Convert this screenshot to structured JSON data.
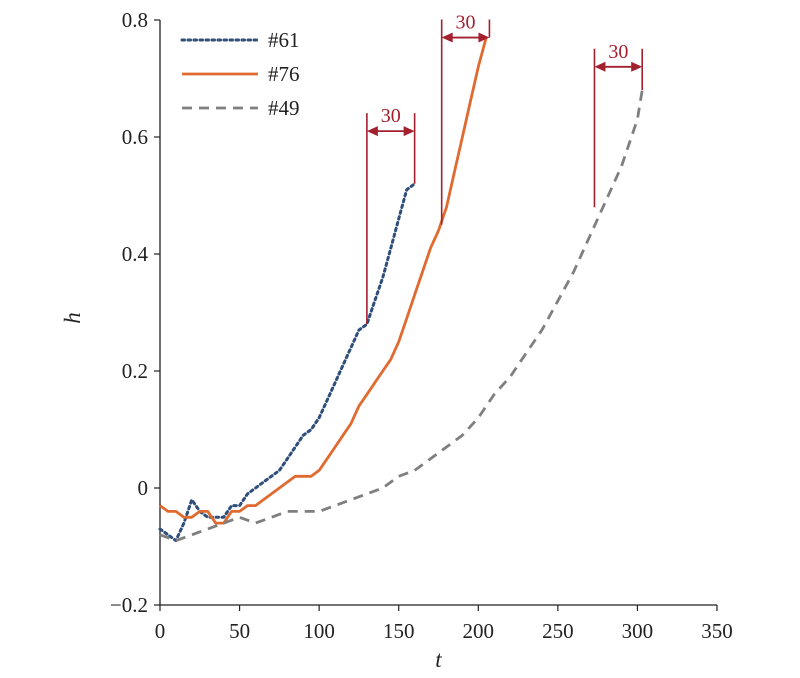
{
  "chart_data": {
    "type": "line",
    "xlabel": "t",
    "ylabel": "h",
    "xlim": [
      0,
      350
    ],
    "ylim": [
      -0.2,
      0.8
    ],
    "xticks": [
      0,
      50,
      100,
      150,
      200,
      250,
      300,
      350
    ],
    "yticks": [
      -0.2,
      0,
      0.2,
      0.4,
      0.6,
      0.8
    ],
    "ytick_labels": [
      "−0.2",
      "0",
      "0.2",
      "0.4",
      "0.6",
      "0.8"
    ],
    "grid": false,
    "legend_position": "top-left",
    "series": [
      {
        "name": "#61",
        "style": "dotted",
        "color": "#2f4e7a",
        "x": [
          0,
          5,
          10,
          15,
          20,
          25,
          30,
          35,
          40,
          45,
          50,
          55,
          60,
          65,
          70,
          75,
          80,
          85,
          90,
          95,
          100,
          105,
          110,
          115,
          120,
          125,
          130,
          135,
          140,
          145,
          150,
          155,
          160
        ],
        "y": [
          -0.07,
          -0.08,
          -0.09,
          -0.06,
          -0.02,
          -0.04,
          -0.05,
          -0.05,
          -0.05,
          -0.03,
          -0.03,
          -0.01,
          0.0,
          0.01,
          0.02,
          0.03,
          0.05,
          0.07,
          0.09,
          0.1,
          0.12,
          0.15,
          0.18,
          0.21,
          0.24,
          0.27,
          0.28,
          0.32,
          0.36,
          0.41,
          0.46,
          0.51,
          0.52
        ]
      },
      {
        "name": "#76",
        "style": "solid",
        "color": "#e06a2f",
        "x": [
          0,
          5,
          10,
          15,
          20,
          25,
          30,
          35,
          40,
          45,
          50,
          55,
          60,
          65,
          70,
          75,
          80,
          85,
          90,
          95,
          100,
          105,
          110,
          115,
          120,
          125,
          130,
          135,
          140,
          145,
          150,
          155,
          160,
          165,
          170,
          175,
          180,
          185,
          190,
          195,
          200,
          205
        ],
        "y": [
          -0.03,
          -0.04,
          -0.04,
          -0.05,
          -0.05,
          -0.04,
          -0.04,
          -0.06,
          -0.06,
          -0.04,
          -0.04,
          -0.03,
          -0.03,
          -0.02,
          -0.01,
          0.0,
          0.01,
          0.02,
          0.02,
          0.02,
          0.03,
          0.05,
          0.07,
          0.09,
          0.11,
          0.14,
          0.16,
          0.18,
          0.2,
          0.22,
          0.25,
          0.29,
          0.33,
          0.37,
          0.41,
          0.44,
          0.48,
          0.54,
          0.6,
          0.66,
          0.72,
          0.77
        ]
      },
      {
        "name": "#49",
        "style": "dashed",
        "color": "#7f7f7f",
        "x": [
          0,
          10,
          20,
          30,
          40,
          50,
          60,
          70,
          80,
          90,
          100,
          110,
          120,
          130,
          140,
          150,
          160,
          170,
          180,
          190,
          200,
          210,
          220,
          230,
          240,
          250,
          260,
          270,
          280,
          290,
          300,
          303
        ],
        "y": [
          -0.08,
          -0.09,
          -0.08,
          -0.07,
          -0.06,
          -0.05,
          -0.06,
          -0.05,
          -0.04,
          -0.04,
          -0.04,
          -0.03,
          -0.02,
          -0.01,
          0.0,
          0.02,
          0.03,
          0.05,
          0.07,
          0.09,
          0.12,
          0.16,
          0.19,
          0.23,
          0.27,
          0.32,
          0.37,
          0.43,
          0.49,
          0.55,
          0.63,
          0.68
        ]
      }
    ],
    "annotations": [
      {
        "label": "30",
        "x_start": 130,
        "x_end": 160,
        "y_bracket": 0.61,
        "y_start_line": 0.28,
        "y_end_line": 0.52
      },
      {
        "label": "30",
        "x_start": 177,
        "x_end": 207,
        "y_bracket": 0.77,
        "y_start_line": 0.45,
        "y_end_line": 0.77
      },
      {
        "label": "30",
        "x_start": 273,
        "x_end": 303,
        "y_bracket": 0.72,
        "y_start_line": 0.48,
        "y_end_line": 0.68
      }
    ],
    "annotation_color": "#a3202f"
  }
}
